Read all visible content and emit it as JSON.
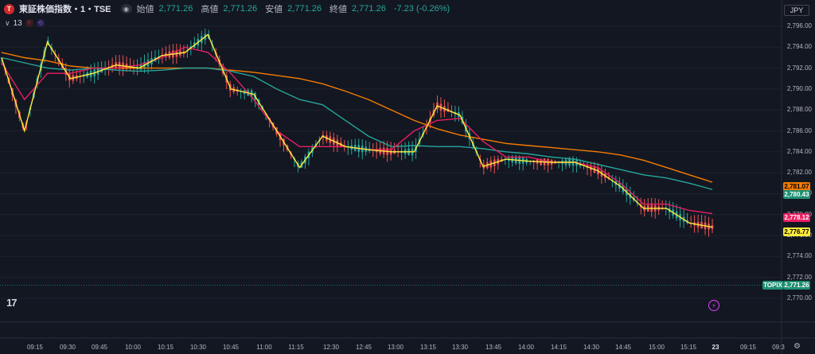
{
  "header": {
    "symbol_icon": "T",
    "title": "東証株価指数・1・TSE",
    "eye_icon": "eye-icon",
    "ohlc": [
      {
        "label": "始値",
        "value": "2,771.26"
      },
      {
        "label": "高値",
        "value": "2,771.26"
      },
      {
        "label": "安値",
        "value": "2,771.26"
      },
      {
        "label": "終値",
        "value": "2,771.26"
      }
    ],
    "change": "-7.23 (-0.26%)",
    "currency": "JPY"
  },
  "indicator": {
    "count": "13",
    "badge1": "!",
    "badge2": "⟲"
  },
  "price_axis": {
    "ticks": [
      "2,796.00",
      "2,794.00",
      "2,792.00",
      "2,790.00",
      "2,788.00",
      "2,786.00",
      "2,784.00",
      "2,782.00",
      "2,780.00",
      "2,778.00",
      "2,776.00",
      "2,774.00",
      "2,772.00",
      "2,770.00"
    ],
    "tick_values": [
      2796,
      2794,
      2792,
      2790,
      2788,
      2786,
      2784,
      2782,
      2780,
      2778,
      2776,
      2774,
      2772,
      2770
    ],
    "tags": [
      {
        "name": "ma-orange-tag",
        "text": "2,781.07",
        "value": 2781.07,
        "bg": "#f57c00",
        "fg": "#000000"
      },
      {
        "name": "ma-green-tag",
        "text": "2,780.43",
        "value": 2780.43,
        "bg": "#1e8f73",
        "fg": "#ffffff"
      },
      {
        "name": "ma-pink-tag",
        "text": "2,778.12",
        "value": 2778.12,
        "bg": "#e91e63",
        "fg": "#ffffff"
      },
      {
        "name": "ma-yellow-tag",
        "text": "2,776.77",
        "value": 2776.77,
        "bg": "#ffeb3b",
        "fg": "#000000"
      }
    ],
    "topix": {
      "label": "TOPIX",
      "text": "2,771.26",
      "value": 2771.26
    }
  },
  "time_axis": {
    "labels": [
      "09:15",
      "09:30",
      "09:45",
      "10:00",
      "10:15",
      "10:30",
      "10:45",
      "11:00",
      "11:15",
      "12:30",
      "12:45",
      "13:00",
      "13:15",
      "13:30",
      "13:45",
      "14:00",
      "14:15",
      "14:30",
      "14:45",
      "15:00",
      "15:15",
      "23",
      "09:15",
      "09:3"
    ]
  },
  "chart_data": {
    "type": "line",
    "series": [
      {
        "color": "#ffeb3b",
        "values": [
          2793,
          2786,
          2794.5,
          2791,
          2791.5,
          2792.3,
          2792,
          2793.2,
          2793.5,
          2795.2,
          2790,
          2789.5,
          2786,
          2782.5,
          2785.5,
          2784.5,
          2784.2,
          2784,
          2784,
          2788.4,
          2787.5,
          2782.6,
          2783.3,
          2783.1,
          2783,
          2783,
          2782.2,
          2780.7,
          2778.6,
          2778.6,
          2777.2,
          2776.8
        ]
      },
      {
        "color": "#e91e63",
        "values": [
          2792.5,
          2789,
          2791.5,
          2791.5,
          2792,
          2792,
          2792.3,
          2793,
          2794,
          2793.5,
          2791.5,
          2789,
          2786,
          2784.5,
          2784.5,
          2784.5,
          2784.2,
          2784.2,
          2786,
          2787,
          2787.2,
          2785,
          2783.5,
          2783.5,
          2783,
          2783,
          2782.5,
          2781,
          2779,
          2779,
          2778.4,
          2778.1
        ]
      },
      {
        "color": "#26a69a",
        "values": [
          2793,
          2792.5,
          2792,
          2791.8,
          2792,
          2791.8,
          2791.7,
          2791.8,
          2792,
          2792,
          2791.7,
          2791.2,
          2790,
          2789,
          2788.5,
          2787,
          2785.5,
          2784.5,
          2784.6,
          2784.5,
          2784.5,
          2784.3,
          2784,
          2783.8,
          2783.5,
          2783.3,
          2782.8,
          2782.3,
          2781.8,
          2781.5,
          2781,
          2780.4
        ]
      },
      {
        "color": "#f57c00",
        "values": [
          2793.5,
          2793,
          2792.7,
          2792.2,
          2792,
          2792,
          2792,
          2792,
          2792,
          2792,
          2791.8,
          2791.6,
          2791.3,
          2791,
          2790.5,
          2789.8,
          2789,
          2788,
          2787,
          2786.2,
          2785.6,
          2785.2,
          2784.8,
          2784.6,
          2784.4,
          2784.2,
          2784,
          2783.7,
          2783.2,
          2782.5,
          2781.8,
          2781.1
        ]
      }
    ],
    "ylim": [
      2770,
      2797
    ],
    "xlabel": "",
    "ylabel": ""
  }
}
